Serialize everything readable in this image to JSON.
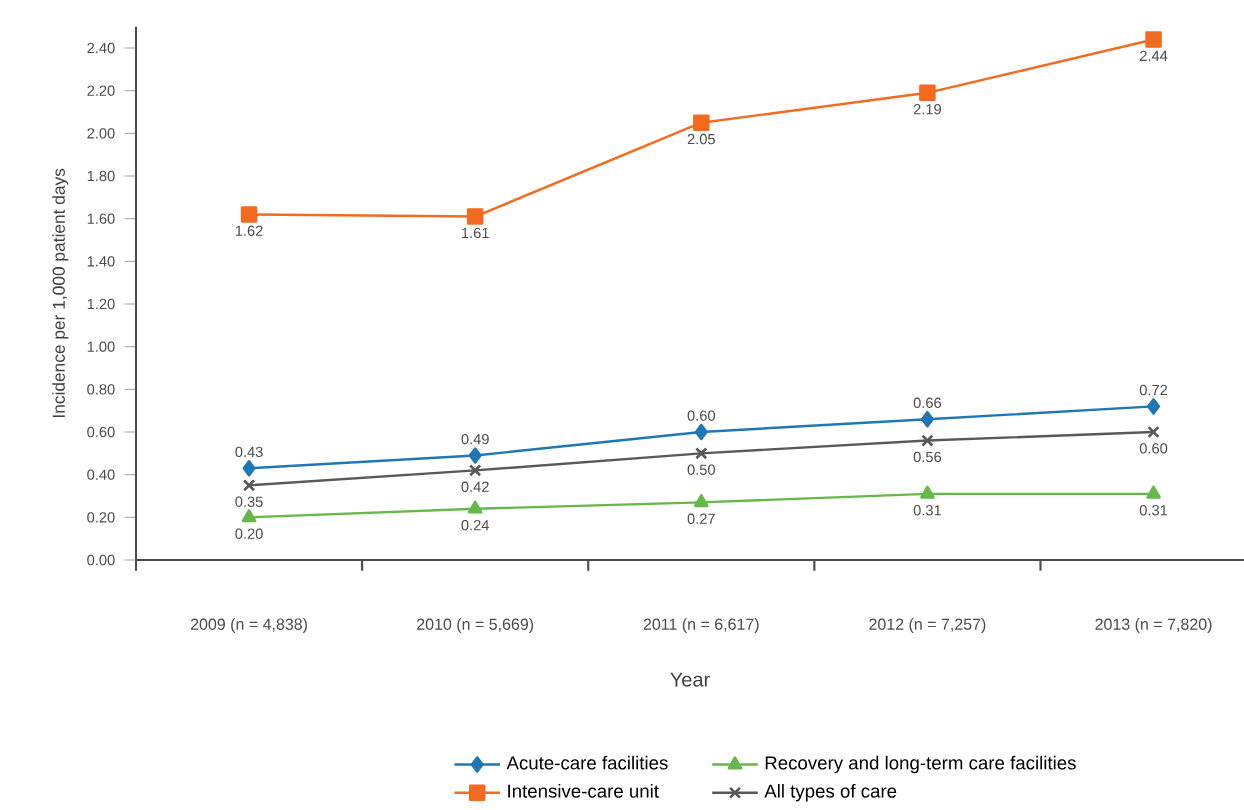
{
  "chart_data": {
    "type": "line",
    "xlabel": "Year",
    "ylabel": "Incidence per 1,000 patient days",
    "categories": [
      "2009 (n = 4,838)",
      "2010 (n = 5,669)",
      "2011 (n = 6,617)",
      "2012 (n = 7,257)",
      "2013 (n = 7,820)"
    ],
    "ylim": [
      0,
      2.5
    ],
    "yticks": [
      {
        "value": 0,
        "label": "0.00"
      },
      {
        "value": 0.2,
        "label": "0.20"
      },
      {
        "value": 0.4,
        "label": "0.40"
      },
      {
        "value": 0.6,
        "label": "0.60"
      },
      {
        "value": 0.8,
        "label": "0.80"
      },
      {
        "value": 1.0,
        "label": "1.00"
      },
      {
        "value": 1.2,
        "label": "1.20"
      },
      {
        "value": 1.4,
        "label": "1.40"
      },
      {
        "value": 1.6,
        "label": "1.60"
      },
      {
        "value": 1.8,
        "label": "1.80"
      },
      {
        "value": 2.0,
        "label": "2.00"
      },
      {
        "value": 2.2,
        "label": "2.20"
      },
      {
        "value": 2.4,
        "label": "2.40"
      }
    ],
    "grid": false,
    "legend": "bottom",
    "series": [
      {
        "name": "Acute-care facilities",
        "color": "#1f78b4",
        "marker": "diamond",
        "values": [
          0.43,
          0.49,
          0.6,
          0.66,
          0.72
        ],
        "value_labels": [
          "0.43",
          "0.49",
          "0.60",
          "0.66",
          "0.72"
        ]
      },
      {
        "name": "Recovery and long-term care facilities",
        "color": "#66b84a",
        "marker": "triangle",
        "values": [
          0.2,
          0.24,
          0.27,
          0.31,
          0.31
        ],
        "value_labels": [
          "0.20",
          "0.24",
          "0.27",
          "0.31",
          "0.31"
        ]
      },
      {
        "name": "Intensive-care unit",
        "color": "#f26b21",
        "marker": "square",
        "values": [
          1.62,
          1.61,
          2.05,
          2.19,
          2.44
        ],
        "value_labels": [
          "1.62",
          "1.61",
          "2.05",
          "2.19",
          "2.44"
        ]
      },
      {
        "name": "All types of care",
        "color": "#595959",
        "marker": "cross",
        "values": [
          0.35,
          0.42,
          0.5,
          0.56,
          0.6
        ],
        "value_labels": [
          "0.35",
          "0.42",
          "0.50",
          "0.56",
          "0.60"
        ]
      }
    ]
  }
}
